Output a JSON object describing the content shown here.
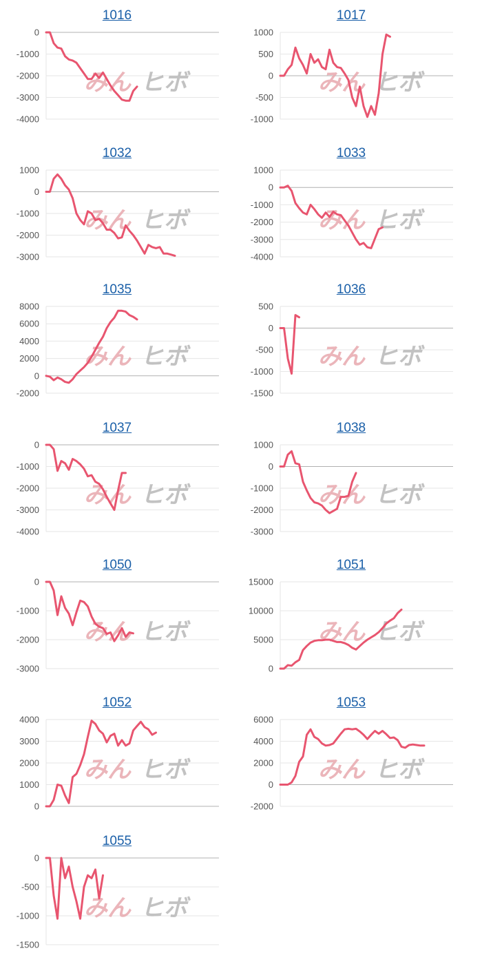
{
  "colors": {
    "line": "#e8556f",
    "grid": "#e6e6e6",
    "axis": "#b0b0b0",
    "title": "#1a5fa8",
    "watermark_left": "#e8a9ae",
    "watermark_right": "#b8b8b8"
  },
  "watermark": {
    "left": "みん",
    "right": "ヒボ"
  },
  "chart_data": [
    {
      "type": "line",
      "title": "1016",
      "yticks": [
        "0",
        "-1000",
        "-2000",
        "-3000",
        "-4000"
      ],
      "ylim": [
        -4000,
        0
      ],
      "series": [
        {
          "values": [
            0,
            0,
            -500,
            -700,
            -750,
            -1100,
            -1250,
            -1300,
            -1400,
            -1650,
            -1900,
            -2150,
            -2150,
            -1900,
            -2100,
            -1850,
            -2150,
            -2450,
            -2700,
            -2900,
            -3100,
            -3150,
            -3150,
            -2700,
            -2500
          ]
        }
      ]
    },
    {
      "type": "line",
      "title": "1017",
      "yticks": [
        "1000",
        "500",
        "0",
        "-500",
        "-1000"
      ],
      "ylim": [
        -1000,
        1000
      ],
      "series": [
        {
          "values": [
            0,
            0,
            150,
            250,
            650,
            400,
            250,
            50,
            500,
            300,
            380,
            200,
            150,
            600,
            300,
            200,
            180,
            50,
            -100,
            -500,
            -700,
            -250,
            -700,
            -950,
            -700,
            -900,
            -400,
            500,
            950,
            900
          ]
        }
      ]
    },
    {
      "type": "line",
      "title": "1032",
      "yticks": [
        "1000",
        "0",
        "-1000",
        "-2000",
        "-3000"
      ],
      "ylim": [
        -3000,
        1000
      ],
      "series": [
        {
          "values": [
            0,
            0,
            600,
            800,
            600,
            300,
            100,
            -300,
            -1000,
            -1300,
            -1500,
            -900,
            -1000,
            -1300,
            -1250,
            -1450,
            -1750,
            -1750,
            -1900,
            -2150,
            -2100,
            -1550,
            -1800,
            -2000,
            -2250,
            -2550,
            -2850,
            -2450,
            -2550,
            -2600,
            -2550,
            -2850,
            -2850,
            -2900,
            -2950
          ]
        }
      ]
    },
    {
      "type": "line",
      "title": "1033",
      "yticks": [
        "1000",
        "0",
        "-1000",
        "-2000",
        "-3000",
        "-4000"
      ],
      "ylim": [
        -4000,
        1000
      ],
      "series": [
        {
          "values": [
            0,
            0,
            100,
            -200,
            -900,
            -1200,
            -1450,
            -1550,
            -1000,
            -1250,
            -1550,
            -1750,
            -1450,
            -1700,
            -1400,
            -1550,
            -1600,
            -1900,
            -2200,
            -2600,
            -3000,
            -3300,
            -3200,
            -3450,
            -3500,
            -2950,
            -2400,
            -2300
          ]
        }
      ]
    },
    {
      "type": "line",
      "title": "1035",
      "yticks": [
        "8000",
        "6000",
        "4000",
        "2000",
        "0",
        "-2000"
      ],
      "ylim": [
        -2000,
        8000
      ],
      "series": [
        {
          "values": [
            0,
            -100,
            -500,
            -200,
            -400,
            -700,
            -800,
            -400,
            200,
            600,
            1000,
            1500,
            2200,
            3000,
            3800,
            4500,
            5500,
            6200,
            6700,
            7500,
            7500,
            7400,
            7000,
            6800,
            6500
          ]
        }
      ]
    },
    {
      "type": "line",
      "title": "1036",
      "yticks": [
        "500",
        "0",
        "-500",
        "-1000",
        "-1500"
      ],
      "ylim": [
        -1500,
        500
      ],
      "series": [
        {
          "values": [
            0,
            0,
            -700,
            -1050,
            300,
            250
          ]
        }
      ]
    },
    {
      "type": "line",
      "title": "1037",
      "yticks": [
        "0",
        "-1000",
        "-2000",
        "-3000",
        "-4000"
      ],
      "ylim": [
        -4000,
        0
      ],
      "series": [
        {
          "values": [
            0,
            0,
            -200,
            -1200,
            -750,
            -850,
            -1150,
            -650,
            -750,
            -900,
            -1100,
            -1450,
            -1400,
            -1700,
            -1800,
            -2050,
            -2400,
            -2700,
            -3000,
            -2100,
            -1300,
            -1300
          ]
        }
      ]
    },
    {
      "type": "line",
      "title": "1038",
      "yticks": [
        "1000",
        "0",
        "-1000",
        "-2000",
        "-3000"
      ],
      "ylim": [
        -3000,
        1000
      ],
      "series": [
        {
          "values": [
            0,
            0,
            550,
            700,
            150,
            100,
            -700,
            -1100,
            -1450,
            -1650,
            -1700,
            -1800,
            -2000,
            -2150,
            -2050,
            -1950,
            -1400,
            -1400,
            -1350,
            -700,
            -300
          ]
        }
      ]
    },
    {
      "type": "line",
      "title": "1050",
      "yticks": [
        "0",
        "-1000",
        "-2000",
        "-3000"
      ],
      "ylim": [
        -3000,
        0
      ],
      "series": [
        {
          "values": [
            0,
            0,
            -300,
            -1150,
            -500,
            -900,
            -1100,
            -1500,
            -1050,
            -650,
            -700,
            -850,
            -1200,
            -1450,
            -1550,
            -1600,
            -1800,
            -1750,
            -2050,
            -1850,
            -1600,
            -1900,
            -1750,
            -1780
          ]
        }
      ]
    },
    {
      "type": "line",
      "title": "1051",
      "yticks": [
        "15000",
        "10000",
        "5000",
        "0"
      ],
      "ylim": [
        0,
        15000
      ],
      "series": [
        {
          "values": [
            0,
            0,
            600,
            500,
            1100,
            1500,
            3200,
            3900,
            4500,
            4800,
            4900,
            4900,
            5000,
            5000,
            4800,
            4600,
            4600,
            4400,
            4100,
            3600,
            3300,
            3900,
            4500,
            5000,
            5400,
            5800,
            6300,
            7000,
            7800,
            8300,
            8700,
            9600,
            10200
          ]
        }
      ]
    },
    {
      "type": "line",
      "title": "1052",
      "yticks": [
        "4000",
        "3000",
        "2000",
        "1000",
        "0"
      ],
      "ylim": [
        0,
        4000
      ],
      "series": [
        {
          "values": [
            0,
            0,
            300,
            1000,
            950,
            500,
            150,
            1350,
            1500,
            1900,
            2400,
            3200,
            3950,
            3800,
            3500,
            3350,
            2950,
            3250,
            3350,
            2800,
            3050,
            2800,
            2900,
            3500,
            3700,
            3900,
            3650,
            3550,
            3300,
            3400
          ]
        }
      ]
    },
    {
      "type": "line",
      "title": "1053",
      "yticks": [
        "6000",
        "4000",
        "2000",
        "0",
        "-2000"
      ],
      "ylim": [
        -2000,
        6000
      ],
      "series": [
        {
          "values": [
            0,
            0,
            0,
            200,
            800,
            2100,
            2600,
            4600,
            5100,
            4400,
            4200,
            3800,
            3600,
            3650,
            3800,
            4250,
            4700,
            5100,
            5150,
            5100,
            5150,
            4900,
            4600,
            4200,
            4600,
            4950,
            4700,
            4950,
            4650,
            4300,
            4350,
            4100,
            3500,
            3400,
            3650,
            3700,
            3650,
            3600,
            3600
          ]
        }
      ]
    },
    {
      "type": "line",
      "title": "1055",
      "yticks": [
        "0",
        "-500",
        "-1000",
        "-1500"
      ],
      "ylim": [
        -1500,
        0
      ],
      "series": [
        {
          "values": [
            0,
            0,
            -650,
            -1050,
            0,
            -350,
            -150,
            -500,
            -750,
            -1050,
            -500,
            -300,
            -350,
            -200,
            -700,
            -300
          ]
        }
      ]
    }
  ]
}
